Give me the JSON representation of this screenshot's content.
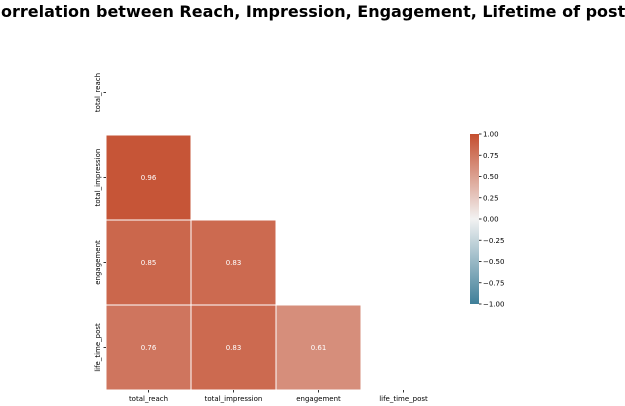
{
  "chart_data": {
    "type": "heatmap",
    "title": "Correlation between Reach, Impression, Engagement, Lifetime of posts",
    "xlabel": "",
    "ylabel": "",
    "x_categories": [
      "total_reach",
      "total_impression",
      "engagement",
      "life_time_post"
    ],
    "y_categories": [
      "total_reach",
      "total_impression",
      "engagement",
      "life_time_post"
    ],
    "mask": "upper-triangle-including-diagonal",
    "cells": [
      {
        "row": 1,
        "col": 0,
        "value": 0.96,
        "label": "0.96"
      },
      {
        "row": 2,
        "col": 0,
        "value": 0.85,
        "label": "0.85"
      },
      {
        "row": 2,
        "col": 1,
        "value": 0.83,
        "label": "0.83"
      },
      {
        "row": 3,
        "col": 0,
        "value": 0.76,
        "label": "0.76"
      },
      {
        "row": 3,
        "col": 1,
        "value": 0.83,
        "label": "0.83"
      },
      {
        "row": 3,
        "col": 2,
        "value": 0.61,
        "label": "0.61"
      }
    ],
    "colorbar": {
      "min": -1.0,
      "max": 1.0,
      "ticks": [
        "1.00",
        "0.75",
        "0.50",
        "0.25",
        "0.00",
        "−0.25",
        "−0.50",
        "−0.75",
        "−1.00"
      ],
      "tick_values": [
        1.0,
        0.75,
        0.5,
        0.25,
        0.0,
        -0.25,
        -0.5,
        -0.75,
        -1.0
      ],
      "colormap_low": "#3f7f99",
      "colormap_mid": "#f2f2f2",
      "colormap_high": "#c44e2f"
    },
    "legend_position": "right",
    "grid": false
  }
}
